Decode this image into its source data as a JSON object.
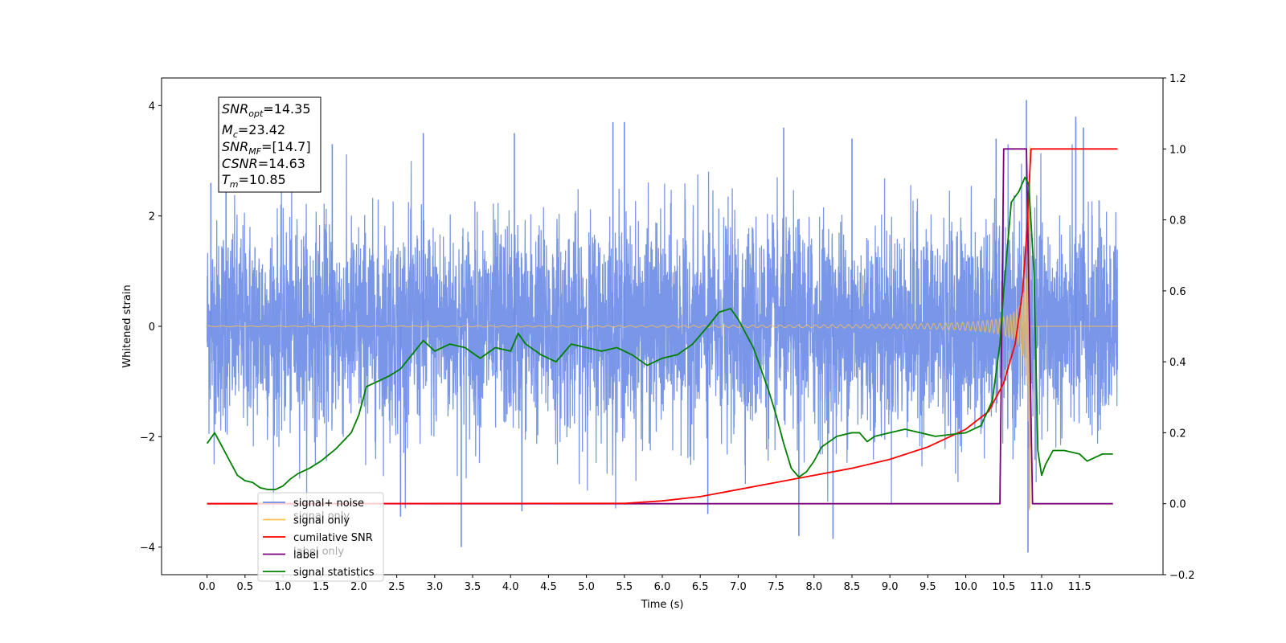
{
  "chart_data": {
    "type": "line",
    "title": "",
    "xlabel": "Time (s)",
    "ylabel": "Whitened strain",
    "xlim": [
      -0.6,
      12.6
    ],
    "ylim": [
      -4.5,
      4.5
    ],
    "y2lim": [
      -0.2,
      1.2
    ],
    "x_ticks": [
      "0.0",
      "0.5",
      "1.0",
      "1.5",
      "2.0",
      "2.5",
      "3.0",
      "3.5",
      "4.0",
      "4.5",
      "5.0",
      "5.5",
      "6.0",
      "6.5",
      "7.0",
      "7.5",
      "8.0",
      "8.5",
      "9.0",
      "9.5",
      "10.0",
      "10.5",
      "11.0",
      "11.5"
    ],
    "y_ticks": [
      "4",
      "2",
      "0",
      "−2",
      "−4"
    ],
    "y2_ticks": [
      "1.2",
      "1.0",
      "0.8",
      "0.6",
      "0.4",
      "0.2",
      "0.0",
      "−0.2"
    ],
    "grid": false,
    "legend": {
      "position": "lower-left",
      "entries": [
        {
          "name": "signal+ noise",
          "color": "#6f8de6"
        },
        {
          "name": "signal only",
          "color": "#ffc04d"
        },
        {
          "name": "cumilative SNR",
          "color": "#ff0000"
        },
        {
          "name": "label",
          "color": "#7b007b"
        },
        {
          "name": "signal statistics",
          "color": "#008000"
        }
      ],
      "occluded_text": [
        "signal only",
        "label only"
      ]
    },
    "annotation": [
      {
        "base": "SNR",
        "sub": "opt",
        "value": "=14.35"
      },
      {
        "base": "M",
        "sub": "c",
        "value": "=23.42"
      },
      {
        "base": "SNR",
        "sub": "MF",
        "value": "=[14.7]"
      },
      {
        "base": "CSNR",
        "sub": "",
        "value": "=14.63"
      },
      {
        "base": "T",
        "sub": "m",
        "value": "=10.85"
      }
    ],
    "series": [
      {
        "name": "signal+ noise",
        "axis": "left",
        "color": "#6f8de6",
        "description": "whitened noise plus signal, roughly -4.1 to 4.1, t from 0 to 12",
        "noise_std": 1.0,
        "spikes": [
          [
            0.05,
            2.6
          ],
          [
            0.25,
            2.5
          ],
          [
            1.65,
            3.3
          ],
          [
            2.85,
            3.5
          ],
          [
            4.05,
            3.5
          ],
          [
            5.35,
            3.7
          ],
          [
            5.5,
            3.7
          ],
          [
            7.6,
            3.6
          ],
          [
            8.5,
            3.4
          ],
          [
            10.4,
            3.4
          ],
          [
            10.8,
            4.1
          ],
          [
            11.45,
            3.8
          ],
          [
            11.55,
            3.6
          ],
          [
            3.35,
            -4.0
          ],
          [
            8.25,
            -3.85
          ],
          [
            10.82,
            -4.1
          ],
          [
            6.6,
            -3.4
          ],
          [
            7.8,
            -3.8
          ],
          [
            2.55,
            -3.45
          ],
          [
            4.15,
            -3.35
          ]
        ]
      },
      {
        "name": "signal only",
        "axis": "left",
        "color": "#ffc04d",
        "description": "chirp with amplitude growing toward merger at 10.85 s",
        "merger_time": 10.85
      },
      {
        "name": "cumilative SNR",
        "axis": "right",
        "color": "#ff0000",
        "points": [
          [
            0,
            0
          ],
          [
            5.5,
            0.001
          ],
          [
            6,
            0.008
          ],
          [
            6.5,
            0.02
          ],
          [
            7,
            0.04
          ],
          [
            7.5,
            0.06
          ],
          [
            8,
            0.08
          ],
          [
            8.5,
            0.1
          ],
          [
            9,
            0.125
          ],
          [
            9.5,
            0.16
          ],
          [
            10,
            0.21
          ],
          [
            10.3,
            0.26
          ],
          [
            10.5,
            0.34
          ],
          [
            10.65,
            0.45
          ],
          [
            10.75,
            0.6
          ],
          [
            10.8,
            0.75
          ],
          [
            10.84,
            0.92
          ],
          [
            10.86,
            1.0
          ],
          [
            12,
            1.0
          ]
        ]
      },
      {
        "name": "label",
        "axis": "right",
        "color": "#7b007b",
        "points": [
          [
            0,
            0
          ],
          [
            10.45,
            0
          ],
          [
            10.5,
            1.0
          ],
          [
            10.8,
            1.0
          ],
          [
            10.88,
            0
          ],
          [
            11.94,
            0
          ]
        ]
      },
      {
        "name": "signal statistics",
        "axis": "right",
        "color": "#008000",
        "points": [
          [
            0,
            0.17
          ],
          [
            0.1,
            0.2
          ],
          [
            0.2,
            0.16
          ],
          [
            0.3,
            0.12
          ],
          [
            0.4,
            0.08
          ],
          [
            0.5,
            0.065
          ],
          [
            0.6,
            0.06
          ],
          [
            0.7,
            0.045
          ],
          [
            0.8,
            0.04
          ],
          [
            0.9,
            0.04
          ],
          [
            1.0,
            0.05
          ],
          [
            1.1,
            0.07
          ],
          [
            1.2,
            0.085
          ],
          [
            1.35,
            0.1
          ],
          [
            1.5,
            0.12
          ],
          [
            1.7,
            0.155
          ],
          [
            1.9,
            0.2
          ],
          [
            2.0,
            0.25
          ],
          [
            2.1,
            0.33
          ],
          [
            2.2,
            0.34
          ],
          [
            2.4,
            0.36
          ],
          [
            2.55,
            0.38
          ],
          [
            2.7,
            0.42
          ],
          [
            2.85,
            0.46
          ],
          [
            3.0,
            0.43
          ],
          [
            3.2,
            0.45
          ],
          [
            3.4,
            0.44
          ],
          [
            3.6,
            0.41
          ],
          [
            3.8,
            0.44
          ],
          [
            4.0,
            0.43
          ],
          [
            4.1,
            0.48
          ],
          [
            4.2,
            0.45
          ],
          [
            4.4,
            0.42
          ],
          [
            4.6,
            0.4
          ],
          [
            4.8,
            0.45
          ],
          [
            5.0,
            0.44
          ],
          [
            5.2,
            0.43
          ],
          [
            5.4,
            0.44
          ],
          [
            5.6,
            0.42
          ],
          [
            5.8,
            0.39
          ],
          [
            6.0,
            0.41
          ],
          [
            6.2,
            0.42
          ],
          [
            6.4,
            0.45
          ],
          [
            6.6,
            0.5
          ],
          [
            6.75,
            0.54
          ],
          [
            6.9,
            0.55
          ],
          [
            7.0,
            0.52
          ],
          [
            7.2,
            0.44
          ],
          [
            7.3,
            0.38
          ],
          [
            7.4,
            0.32
          ],
          [
            7.5,
            0.25
          ],
          [
            7.6,
            0.17
          ],
          [
            7.7,
            0.1
          ],
          [
            7.8,
            0.075
          ],
          [
            7.9,
            0.09
          ],
          [
            8.0,
            0.12
          ],
          [
            8.1,
            0.16
          ],
          [
            8.3,
            0.19
          ],
          [
            8.5,
            0.2
          ],
          [
            8.6,
            0.2
          ],
          [
            8.7,
            0.175
          ],
          [
            8.8,
            0.19
          ],
          [
            9.0,
            0.2
          ],
          [
            9.2,
            0.21
          ],
          [
            9.4,
            0.2
          ],
          [
            9.6,
            0.19
          ],
          [
            9.8,
            0.195
          ],
          [
            10.0,
            0.2
          ],
          [
            10.2,
            0.22
          ],
          [
            10.35,
            0.29
          ],
          [
            10.45,
            0.45
          ],
          [
            10.5,
            0.6
          ],
          [
            10.6,
            0.85
          ],
          [
            10.7,
            0.88
          ],
          [
            10.78,
            0.92
          ],
          [
            10.83,
            0.9
          ],
          [
            10.9,
            0.65
          ],
          [
            10.95,
            0.15
          ],
          [
            11.0,
            0.08
          ],
          [
            11.05,
            0.11
          ],
          [
            11.15,
            0.15
          ],
          [
            11.3,
            0.15
          ],
          [
            11.5,
            0.14
          ],
          [
            11.6,
            0.12
          ],
          [
            11.8,
            0.14
          ],
          [
            11.94,
            0.14
          ]
        ]
      }
    ]
  }
}
